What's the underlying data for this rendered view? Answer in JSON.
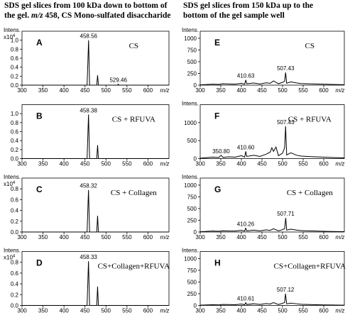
{
  "headers": [
    {
      "lines": [
        [
          {
            "text": "SDS gel slices from 100 kDa down to bottom of"
          }
        ],
        [
          {
            "text": "the gel.  "
          },
          {
            "text": "m/z",
            "italic": true
          },
          {
            "text": " 458, CS Mono-sulfated disaccharide"
          }
        ]
      ]
    },
    {
      "lines": [
        [
          {
            "text": "SDS gel slices from 150 kDa up to the"
          }
        ],
        [
          {
            "text": "bottom of the gel sample well"
          }
        ]
      ]
    }
  ],
  "chart_data": [
    {
      "type": "line",
      "panel": "A",
      "label": "CS",
      "ylabel": "Intens.",
      "y_scale_label": {
        "base": "x10",
        "exponent": "4"
      },
      "xlabel": "m/z",
      "color": "#000000",
      "x": [
        300,
        455,
        458.56,
        461,
        478,
        480,
        482,
        527,
        529.46,
        531,
        650
      ],
      "values": [
        0,
        0,
        1.0,
        0,
        0,
        0.22,
        0,
        0,
        0.02,
        0,
        0
      ],
      "xlim": [
        300,
        650
      ],
      "ylim": [
        0,
        1.2
      ],
      "xticks": [
        300,
        350,
        400,
        450,
        500,
        550,
        600
      ],
      "yticks": [
        {
          "value": 0,
          "label": "0.0"
        },
        0.2,
        0.4,
        0.6,
        0.8,
        {
          "value": 1,
          "label": "1.0"
        }
      ],
      "annotations": [
        {
          "text": "458.56",
          "x": 458.56,
          "y": 1.0
        },
        {
          "text": "529.46",
          "x": 529.46,
          "y": 0.02
        }
      ]
    },
    {
      "type": "line",
      "panel": "B",
      "label": "CS + RFUVA",
      "xlabel": "m/z",
      "color": "#000000",
      "x": [
        300,
        455,
        458.38,
        461,
        478,
        480,
        482,
        650
      ],
      "values": [
        0,
        0,
        0.98,
        0,
        0,
        0.3,
        0,
        0
      ],
      "xlim": [
        300,
        650
      ],
      "ylim": [
        0,
        1.2
      ],
      "xticks": [
        300,
        350,
        400,
        450,
        500,
        550,
        600
      ],
      "yticks": [
        {
          "value": 0,
          "label": "0.0"
        },
        0.2,
        0.4,
        0.6,
        0.8,
        {
          "value": 1,
          "label": "1.0"
        }
      ],
      "annotations": [
        {
          "text": "458.38",
          "x": 458.38,
          "y": 0.98
        }
      ]
    },
    {
      "type": "line",
      "panel": "C",
      "label": "CS + Collagen",
      "ylabel": "Intens.",
      "y_scale_label": {
        "base": "x10",
        "exponent": "4"
      },
      "xlabel": "m/z",
      "color": "#000000",
      "x": [
        300,
        455,
        458.32,
        461,
        478,
        480,
        482,
        650
      ],
      "values": [
        0,
        0,
        0.78,
        0,
        0,
        0.3,
        0,
        0
      ],
      "xlim": [
        300,
        650
      ],
      "ylim": [
        0,
        1.0
      ],
      "xticks": [
        300,
        350,
        400,
        450,
        500,
        550,
        600
      ],
      "yticks": [
        {
          "value": 0,
          "label": "0.0"
        },
        0.2,
        0.4,
        0.6,
        0.8
      ],
      "annotations": [
        {
          "text": "458.32",
          "x": 458.32,
          "y": 0.78
        }
      ]
    },
    {
      "type": "line",
      "panel": "D",
      "label": "CS+Collagen+RFUVA",
      "ylabel": "Intens.",
      "y_scale_label": {
        "base": "x10",
        "exponent": "4"
      },
      "xlabel": "m/z",
      "color": "#000000",
      "x": [
        300,
        455,
        458.33,
        461,
        478,
        480,
        482,
        650
      ],
      "values": [
        0,
        0,
        0.82,
        0,
        0,
        0.35,
        0,
        0
      ],
      "xlim": [
        300,
        650
      ],
      "ylim": [
        0,
        1.0
      ],
      "xticks": [
        300,
        350,
        400,
        450,
        500,
        550,
        600
      ],
      "yticks": [
        {
          "value": 0,
          "label": "0.0"
        },
        0.2,
        0.4,
        0.6,
        0.8
      ],
      "annotations": [
        {
          "text": "458.33",
          "x": 458.33,
          "y": 0.82
        }
      ]
    },
    {
      "type": "line",
      "panel": "E",
      "label": "CS",
      "ylabel": "Intens.",
      "xlabel": "m/z",
      "color": "#000000",
      "x": [
        300,
        330,
        345,
        355,
        370,
        385,
        400,
        408,
        410.63,
        413,
        430,
        445,
        460,
        470,
        478,
        490,
        500,
        505,
        507.43,
        510,
        520,
        535,
        545,
        560,
        580,
        600,
        620,
        650
      ],
      "values": [
        5,
        20,
        15,
        30,
        25,
        20,
        40,
        20,
        110,
        30,
        45,
        25,
        50,
        40,
        90,
        30,
        60,
        80,
        270,
        40,
        70,
        45,
        35,
        30,
        25,
        20,
        15,
        10
      ],
      "xlim": [
        300,
        650
      ],
      "ylim": [
        0,
        1150
      ],
      "xticks": [
        300,
        350,
        400,
        450,
        500,
        550,
        600
      ],
      "yticks": [
        0,
        250,
        500,
        750,
        1000
      ],
      "annotations": [
        {
          "text": "410.63",
          "x": 410.63,
          "y": 110
        },
        {
          "text": "507.43",
          "x": 507.43,
          "y": 270
        }
      ]
    },
    {
      "type": "line",
      "panel": "F",
      "label": "CS + RFUVA",
      "ylabel": "Intens.",
      "xlabel": "m/z",
      "color": "#000000",
      "x": [
        300,
        330,
        345,
        350.8,
        356,
        370,
        385,
        400,
        408,
        410.6,
        413,
        430,
        445,
        460,
        470,
        474,
        478,
        484,
        490,
        500,
        505,
        507.43,
        510,
        520,
        535,
        545,
        560,
        580,
        600,
        620,
        650
      ],
      "values": [
        10,
        40,
        30,
        90,
        30,
        50,
        40,
        80,
        40,
        200,
        60,
        90,
        60,
        120,
        180,
        300,
        200,
        320,
        80,
        150,
        300,
        900,
        100,
        160,
        90,
        70,
        60,
        50,
        40,
        30,
        20
      ],
      "xlim": [
        300,
        650
      ],
      "ylim": [
        0,
        1500
      ],
      "xticks": [
        300,
        350,
        400,
        450,
        500,
        550,
        600
      ],
      "yticks": [
        0,
        500,
        1000
      ],
      "annotations": [
        {
          "text": "350.80",
          "x": 350.8,
          "y": 90
        },
        {
          "text": "410.60",
          "x": 410.6,
          "y": 200
        },
        {
          "text": "507.43",
          "x": 507.43,
          "y": 900
        }
      ]
    },
    {
      "type": "line",
      "panel": "G",
      "label": "CS + Collagen",
      "ylabel": "Intens.",
      "xlabel": "m/z",
      "color": "#000000",
      "x": [
        300,
        330,
        345,
        355,
        370,
        385,
        400,
        408,
        410.26,
        413,
        430,
        445,
        460,
        470,
        478,
        490,
        500,
        505,
        507.71,
        510,
        520,
        535,
        545,
        560,
        580,
        600,
        620,
        650
      ],
      "values": [
        5,
        20,
        15,
        25,
        20,
        20,
        35,
        20,
        80,
        25,
        40,
        25,
        45,
        35,
        70,
        25,
        50,
        70,
        300,
        40,
        60,
        40,
        30,
        25,
        20,
        15,
        12,
        8
      ],
      "xlim": [
        300,
        650
      ],
      "ylim": [
        0,
        1150
      ],
      "xticks": [
        300,
        350,
        400,
        450,
        500,
        550,
        600
      ],
      "yticks": [
        0,
        250,
        500,
        750,
        1000
      ],
      "annotations": [
        {
          "text": "410.26",
          "x": 410.26,
          "y": 80
        },
        {
          "text": "507.71",
          "x": 507.71,
          "y": 300
        }
      ]
    },
    {
      "type": "line",
      "panel": "H",
      "label": "CS+Collagen+RFUVA",
      "ylabel": "Intens.",
      "xlabel": "m/z",
      "color": "#000000",
      "x": [
        300,
        330,
        345,
        355,
        370,
        385,
        400,
        408,
        410.61,
        413,
        430,
        445,
        460,
        470,
        478,
        490,
        500,
        505,
        507.12,
        510,
        520,
        535,
        545,
        560,
        580,
        600,
        620,
        650
      ],
      "values": [
        5,
        15,
        12,
        20,
        18,
        15,
        30,
        15,
        60,
        20,
        35,
        20,
        40,
        30,
        60,
        20,
        45,
        60,
        250,
        35,
        50,
        35,
        25,
        20,
        15,
        12,
        10,
        6
      ],
      "xlim": [
        300,
        650
      ],
      "ylim": [
        0,
        1150
      ],
      "xticks": [
        300,
        350,
        400,
        450,
        500,
        550,
        600
      ],
      "yticks": [
        0,
        250,
        500,
        750,
        1000
      ],
      "annotations": [
        {
          "text": "410.61",
          "x": 410.61,
          "y": 60
        },
        {
          "text": "507.12",
          "x": 507.12,
          "y": 250
        }
      ]
    }
  ]
}
